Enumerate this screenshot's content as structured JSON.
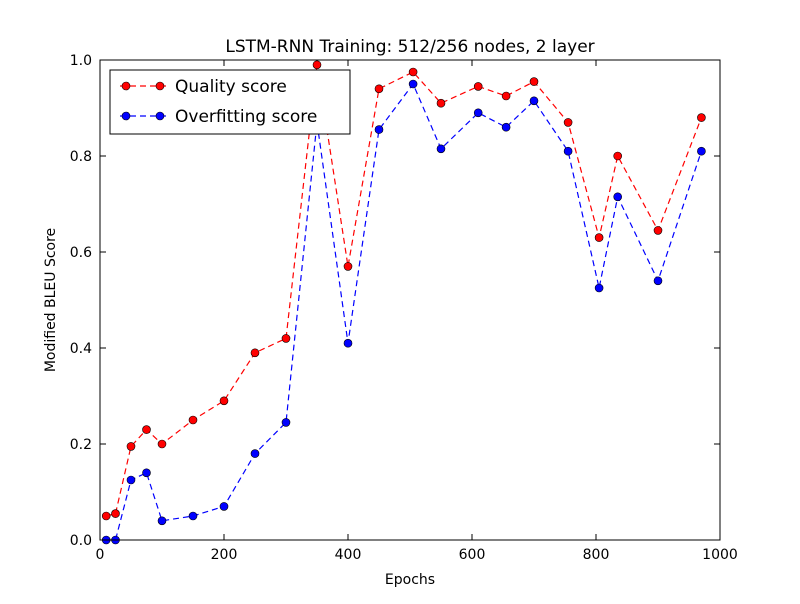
{
  "chart_data": {
    "type": "line",
    "title": "LSTM-RNN Training: 512/256 nodes, 2 layer",
    "xlabel": "Epochs",
    "ylabel": "Modified BLEU Score",
    "xlim": [
      0,
      1000
    ],
    "ylim": [
      0.0,
      1.0
    ],
    "xticks": [
      0,
      200,
      400,
      600,
      800,
      1000
    ],
    "xtick_labels": [
      "0",
      "200",
      "400",
      "600",
      "800",
      "1000"
    ],
    "yticks": [
      0.0,
      0.2,
      0.4,
      0.6,
      0.8,
      1.0
    ],
    "ytick_labels": [
      "0.0",
      "0.2",
      "0.4",
      "0.6",
      "0.8",
      "1.0"
    ],
    "grid": false,
    "legend_position": "top-left",
    "x": [
      10,
      25,
      50,
      75,
      100,
      150,
      200,
      250,
      300,
      350,
      400,
      450,
      505,
      550,
      610,
      655,
      700,
      755,
      805,
      835,
      900,
      970
    ],
    "series": [
      {
        "name": "Quality score",
        "color": "#ff0000",
        "values": [
          0.05,
          0.055,
          0.195,
          0.23,
          0.2,
          0.25,
          0.29,
          0.39,
          0.42,
          0.99,
          0.57,
          0.94,
          0.975,
          0.91,
          0.945,
          0.925,
          0.955,
          0.87,
          0.63,
          0.8,
          0.645,
          0.88
        ]
      },
      {
        "name": "Overfitting score",
        "color": "#0000ff",
        "values": [
          0.0,
          0.0,
          0.125,
          0.14,
          0.04,
          0.05,
          0.07,
          0.18,
          0.245,
          0.87,
          0.41,
          0.855,
          0.95,
          0.815,
          0.89,
          0.86,
          0.915,
          0.81,
          0.525,
          0.715,
          0.54,
          0.81
        ]
      }
    ]
  }
}
